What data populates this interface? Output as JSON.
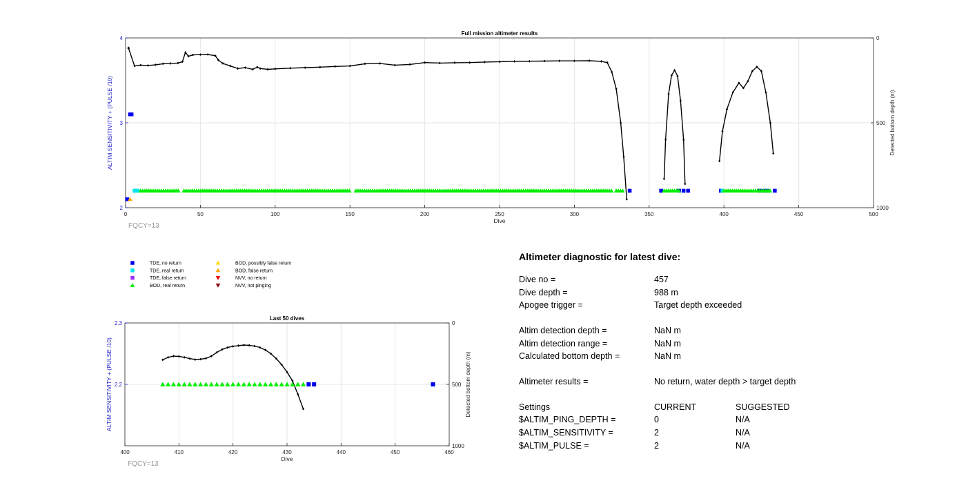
{
  "chart_data": [
    {
      "type": "scatter",
      "title": "Full mission altimeter results",
      "xlabel": "Dive",
      "ylabel": "ALTIM SENSITIVITY + (PULSE /10)",
      "y2label": "Detected bottom depth (m)",
      "xlim": [
        0,
        500
      ],
      "ylim": [
        2,
        4
      ],
      "y2lim": [
        1000,
        0
      ],
      "xticks": [
        "0",
        "50",
        "100",
        "150",
        "200",
        "250",
        "300",
        "350",
        "400",
        "450",
        "500"
      ],
      "yticks": [
        "2",
        "3",
        "4"
      ],
      "y2ticks": [
        "0",
        "500",
        "1000"
      ],
      "annotation": "FQCY=13",
      "grid": true,
      "bottom_depth_segments": [
        {
          "x": [
            2,
            6,
            10,
            15,
            20,
            25,
            30,
            35,
            38,
            40,
            42,
            45,
            50,
            55,
            60,
            62,
            65,
            70,
            75,
            80,
            85,
            88,
            90,
            95,
            100,
            110,
            120,
            130,
            140,
            150,
            160,
            170,
            180,
            190,
            200,
            210,
            220,
            230,
            240,
            250,
            260,
            270,
            280,
            290,
            300,
            310,
            318,
            322,
            325,
            328,
            331,
            333,
            335
          ],
          "y": [
            60,
            165,
            160,
            162,
            158,
            152,
            150,
            148,
            140,
            85,
            108,
            100,
            98,
            97,
            105,
            130,
            150,
            165,
            180,
            175,
            185,
            172,
            180,
            185,
            182,
            178,
            175,
            172,
            168,
            165,
            152,
            150,
            160,
            156,
            145,
            148,
            146,
            145,
            142,
            140,
            138,
            137,
            136,
            135,
            135,
            134,
            138,
            145,
            200,
            300,
            500,
            700,
            950
          ]
        },
        {
          "x": [
            360,
            361,
            363,
            365,
            367,
            369,
            371,
            373,
            374
          ],
          "y": [
            830,
            600,
            330,
            220,
            190,
            225,
            370,
            600,
            860
          ]
        },
        {
          "x": [
            397,
            399,
            402,
            406,
            410,
            413,
            416,
            419,
            422,
            425,
            428,
            431,
            433
          ],
          "y": [
            725,
            550,
            420,
            320,
            265,
            295,
            255,
            195,
            170,
            195,
            320,
            500,
            680
          ]
        }
      ],
      "diagnostic_series": [
        {
          "name": "TDE, no return",
          "x": [
            1,
            3,
            4,
            337,
            358,
            370,
            373,
            376,
            398,
            424,
            427,
            429,
            434
          ],
          "y": [
            2.1,
            3.1,
            3.1,
            2.2,
            2.2,
            2.2,
            2.2,
            2.2,
            2.2,
            2.2,
            2.2,
            2.2,
            2.2
          ]
        },
        {
          "name": "TDE, real return",
          "x": [
            6,
            7,
            8,
            399
          ],
          "y": [
            2.2,
            2.2,
            2.2,
            2.2
          ]
        },
        {
          "name": "BOD, real return",
          "x_ranges": [
            [
              10,
              36
            ],
            [
              39,
              150
            ],
            [
              154,
              325
            ],
            [
              328,
              333
            ],
            [
              360,
              370
            ],
            [
              400,
              432
            ]
          ],
          "y": 2.2
        },
        {
          "name": "BOD, false return",
          "x": [
            3
          ],
          "y": [
            2.1
          ]
        },
        {
          "name": "BOD, possibly false return",
          "x": [],
          "y": []
        },
        {
          "name": "TDE, false return",
          "x": [],
          "y": []
        },
        {
          "name": "NVV, no return",
          "x": [],
          "y": []
        },
        {
          "name": "NVV, not pinging",
          "x": [],
          "y": [],
          "note_marker": "diamond"
        },
        {
          "name": "",
          "x": [
            2
          ],
          "y": [
            3.88
          ]
        }
      ]
    },
    {
      "type": "scatter",
      "title": "Last 50 dives",
      "xlabel": "Dive",
      "ylabel": "ALTIM SENSITIVITY + (PULSE /10)",
      "y2label": "Detected bottom depth (m)",
      "xlim": [
        400,
        460
      ],
      "ylim": [
        2.1,
        2.3
      ],
      "y2lim": [
        1000,
        0
      ],
      "xticks": [
        "400",
        "410",
        "420",
        "430",
        "440",
        "450",
        "460"
      ],
      "yticks": [
        "2.2",
        "2.3"
      ],
      "y2ticks": [
        "0",
        "500",
        "1000"
      ],
      "annotation": "FQCY=13",
      "grid": true,
      "bottom_depth": {
        "x": [
          407,
          408,
          409,
          410,
          411,
          412,
          413,
          414,
          415,
          416,
          417,
          418,
          419,
          420,
          421,
          422,
          423,
          424,
          425,
          426,
          427,
          428,
          429,
          430,
          431,
          432,
          433
        ],
        "y": [
          300,
          280,
          270,
          272,
          280,
          290,
          298,
          295,
          288,
          270,
          240,
          215,
          200,
          190,
          185,
          180,
          182,
          188,
          200,
          220,
          250,
          290,
          340,
          400,
          470,
          580,
          700
        ]
      },
      "diagnostic_series": [
        {
          "name": "BOD, real return",
          "x": [
            407,
            408,
            409,
            410,
            411,
            412,
            413,
            414,
            415,
            416,
            417,
            418,
            419,
            420,
            421,
            422,
            423,
            424,
            425,
            426,
            427,
            428,
            429,
            430,
            431,
            432,
            433
          ],
          "y": 2.2
        },
        {
          "name": "TDE, no return",
          "x": [
            434,
            435,
            457
          ],
          "y": 2.2
        }
      ]
    }
  ],
  "legend": {
    "col1": [
      {
        "label": "TDE, no return",
        "marker": "square",
        "color": "#0000ee"
      },
      {
        "label": "TDE, real return",
        "marker": "square",
        "color": "#00e5ee"
      },
      {
        "label": "TDE, false return",
        "marker": "square",
        "color": "#9b30ff"
      },
      {
        "label": "BOD, real return",
        "marker": "triangle-up",
        "color": "#00ee00"
      }
    ],
    "col2": [
      {
        "label": "BOD, possibly false return",
        "marker": "triangle-up",
        "color": "#ffd700"
      },
      {
        "label": "BOD, false return",
        "marker": "triangle-up",
        "color": "#ffa500"
      },
      {
        "label": "NVV, no return",
        "marker": "triangle-down",
        "color": "#ee0000"
      },
      {
        "label": "NVV, not pinging",
        "marker": "triangle-down",
        "color": "#8b0000"
      }
    ]
  },
  "colors": {
    "axis_left": "#2222cc",
    "annotation": "#999999",
    "depth_line": "#000000",
    "grid": "#e6e6e6"
  },
  "diagnostic": {
    "title": "Altimeter diagnostic for latest dive:",
    "rows1": [
      {
        "label": "Dive no =",
        "value": "457"
      },
      {
        "label": "Dive depth =",
        "value": "988 m"
      },
      {
        "label": "Apogee trigger =",
        "value": "Target depth exceeded"
      }
    ],
    "rows2": [
      {
        "label": "Altim detection depth =",
        "value": "NaN m"
      },
      {
        "label": "Altim detection range =",
        "value": "NaN m"
      },
      {
        "label": "Calculated bottom depth =",
        "value": "NaN m"
      }
    ],
    "rows3": [
      {
        "label": "Altimeter results =",
        "value": "No return, water depth > target depth"
      }
    ],
    "settings_header": {
      "label": "Settings",
      "current": "CURRENT",
      "suggested": "SUGGESTED"
    },
    "settings": [
      {
        "label": "$ALTIM_PING_DEPTH =",
        "current": "0",
        "suggested": "N/A"
      },
      {
        "label": "$ALTIM_SENSITIVITY =",
        "current": "2",
        "suggested": "N/A"
      },
      {
        "label": "$ALTIM_PULSE =",
        "current": "2",
        "suggested": "N/A"
      }
    ]
  }
}
